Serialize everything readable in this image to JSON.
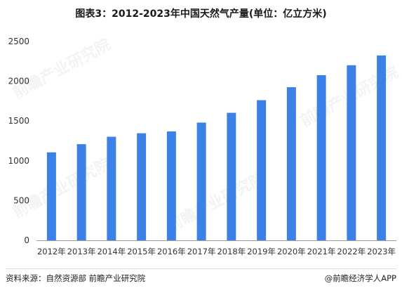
{
  "title": "图表3：2012-2023年中国天然气产量(单位：亿立方米)",
  "chart_data": {
    "type": "bar",
    "categories": [
      "2012年",
      "2013年",
      "2014年",
      "2015年",
      "2016年",
      "2017年",
      "2018年",
      "2019年",
      "2020年",
      "2021年",
      "2022年",
      "2023年"
    ],
    "values": [
      1106,
      1209,
      1302,
      1346,
      1369,
      1480,
      1603,
      1762,
      1925,
      2076,
      2201,
      2324
    ],
    "ylim": [
      0,
      2500
    ],
    "yticks": [
      0,
      500,
      1000,
      1500,
      2000,
      2500
    ],
    "grid": false,
    "bar_color": "#3c82e6"
  },
  "footer": {
    "source": "资料来源：自然资源部 前瞻产业研究院",
    "brand": "@前瞻经济学人APP"
  },
  "watermark": "前瞻产业研究院"
}
